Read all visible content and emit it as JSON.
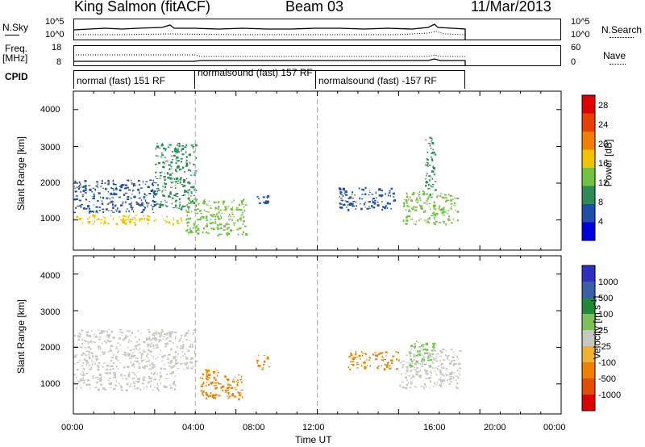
{
  "header": {
    "station": "King Salmon (fitACF)",
    "beam": "Beam 03",
    "date": "11/Mar/2013"
  },
  "noise_panel": {
    "left_label": "N.Sky",
    "right_label": "N.Search",
    "left_ticks": [
      "10^5",
      "10^0"
    ],
    "right_ticks": [
      "10^5",
      "10^0"
    ]
  },
  "freq_panel": {
    "left_label_line1": "Freq.",
    "left_label_line2": "[MHz]",
    "right_label": "Nave",
    "left_ticks": [
      "18",
      "8"
    ],
    "right_ticks": [
      "60",
      "0"
    ]
  },
  "cpid_panel": {
    "label": "CPID",
    "modes": [
      {
        "text": "normal (fast) 151 RF",
        "start": "00:00"
      },
      {
        "text": "normalsound (fast) 157 RF",
        "start": "06:00"
      },
      {
        "text": "normalsound (fast) -157 RF",
        "start": "12:00"
      }
    ]
  },
  "x_axis": {
    "title": "Time UT",
    "ticks": [
      "00:00",
      "04:00",
      "08:00",
      "12:00",
      "16:00",
      "20:00",
      "00:00"
    ]
  },
  "y_axis": {
    "title": "Slant Range [km]",
    "ticks": [
      "1000",
      "2000",
      "3000",
      "4000"
    ]
  },
  "colors": {
    "power": [
      "#0000dd",
      "#1f4fa8",
      "#2e8b57",
      "#74c043",
      "#f2c200",
      "#f08000",
      "#e84000",
      "#dd0000"
    ],
    "velocity": [
      "#3030c0",
      "#3a5fa8",
      "#1f8a3a",
      "#7cc05a",
      "#c8c8c0",
      "#f0b030",
      "#f08000",
      "#e05000",
      "#dd0000"
    ],
    "ground_scatter": "#c8c8c0"
  },
  "chart_data": [
    {
      "type": "heatmap",
      "name": "Power",
      "colorbar": {
        "label": "Power [dB]",
        "ticks": [
          "4",
          "8",
          "12",
          "16",
          "20",
          "24",
          "28"
        ],
        "range": [
          0,
          30
        ]
      },
      "xlim": [
        0,
        24
      ],
      "ylim": [
        180,
        4500
      ],
      "regions": [
        {
          "t0": 0.0,
          "t1": 5.5,
          "r0": 900,
          "r1": 1150,
          "value": 18
        },
        {
          "t0": 0.0,
          "t1": 4.0,
          "r0": 1200,
          "r1": 2100,
          "value": 6
        },
        {
          "t0": 4.0,
          "t1": 6.0,
          "r0": 1300,
          "r1": 3100,
          "value": 8
        },
        {
          "t0": 5.5,
          "t1": 8.5,
          "r0": 600,
          "r1": 1600,
          "value": 14
        },
        {
          "t0": 9.0,
          "t1": 9.6,
          "r0": 1400,
          "r1": 1700,
          "value": 6
        },
        {
          "t0": 13.0,
          "t1": 15.8,
          "r0": 1300,
          "r1": 1900,
          "value": 4
        },
        {
          "t0": 16.2,
          "t1": 18.9,
          "r0": 900,
          "r1": 1800,
          "value": 14
        },
        {
          "t0": 17.3,
          "t1": 17.8,
          "r0": 1600,
          "r1": 3300,
          "value": 8
        }
      ]
    },
    {
      "type": "heatmap",
      "name": "Velocity",
      "colorbar": {
        "label": "Velocity [m s-1]",
        "label_base": "Velocity [m s",
        "label_exp": "-1",
        "label_close": "]",
        "ticks": [
          "1000",
          "500",
          "100",
          "25",
          "-25",
          "-100",
          "-500",
          "-1000"
        ]
      },
      "xlim": [
        0,
        24
      ],
      "ylim": [
        180,
        4500
      ],
      "regions": [
        {
          "t0": 0.0,
          "t1": 5.0,
          "r0": 850,
          "r1": 1350,
          "value": 0,
          "ground_scatter": true
        },
        {
          "t0": 0.0,
          "t1": 6.0,
          "r0": 1400,
          "r1": 2500,
          "value": 0,
          "ground_scatter": true
        },
        {
          "t0": 6.2,
          "t1": 8.3,
          "r0": 600,
          "r1": 1400,
          "value": -150
        },
        {
          "t0": 9.0,
          "t1": 9.6,
          "r0": 1400,
          "r1": 1800,
          "value": -150
        },
        {
          "t0": 13.5,
          "t1": 16.0,
          "r0": 1400,
          "r1": 1900,
          "value": -150
        },
        {
          "t0": 16.0,
          "t1": 19.0,
          "r0": 900,
          "r1": 2000,
          "value": 0,
          "ground_scatter": true
        },
        {
          "t0": 16.5,
          "t1": 17.8,
          "r0": 1500,
          "r1": 2200,
          "value": 60
        }
      ]
    }
  ]
}
